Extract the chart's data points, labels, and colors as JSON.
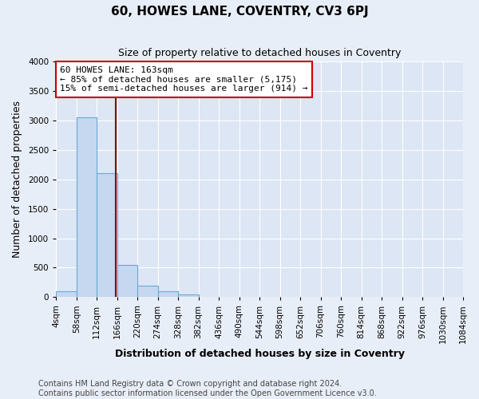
{
  "title": "60, HOWES LANE, COVENTRY, CV3 6PJ",
  "subtitle": "Size of property relative to detached houses in Coventry",
  "xlabel": "Distribution of detached houses by size in Coventry",
  "ylabel": "Number of detached properties",
  "bin_edges": [
    4,
    58,
    112,
    166,
    220,
    274,
    328,
    382,
    436,
    490,
    544,
    598,
    652,
    706,
    760,
    814,
    868,
    922,
    976,
    1030,
    1084
  ],
  "bar_heights": [
    100,
    3050,
    2100,
    550,
    200,
    100,
    50,
    0,
    0,
    0,
    0,
    0,
    0,
    0,
    0,
    0,
    0,
    0,
    0,
    0
  ],
  "bar_color": "#c5d8ef",
  "bar_edgecolor": "#6aaad4",
  "property_size": 163,
  "vline_color": "#8b0000",
  "annotation_line1": "60 HOWES LANE: 163sqm",
  "annotation_line2": "← 85% of detached houses are smaller (5,175)",
  "annotation_line3": "15% of semi-detached houses are larger (914) →",
  "annotation_box_color": "white",
  "annotation_box_edgecolor": "#cc0000",
  "ylim": [
    0,
    4000
  ],
  "yticks": [
    0,
    500,
    1000,
    1500,
    2000,
    2500,
    3000,
    3500,
    4000
  ],
  "footer_line1": "Contains HM Land Registry data © Crown copyright and database right 2024.",
  "footer_line2": "Contains public sector information licensed under the Open Government Licence v3.0.",
  "bg_color": "#e8eef8",
  "plot_bg_color": "#dce6f5",
  "grid_color": "white",
  "title_fontsize": 11,
  "subtitle_fontsize": 9,
  "axis_label_fontsize": 9,
  "tick_fontsize": 7.5,
  "annotation_fontsize": 8,
  "footer_fontsize": 7
}
